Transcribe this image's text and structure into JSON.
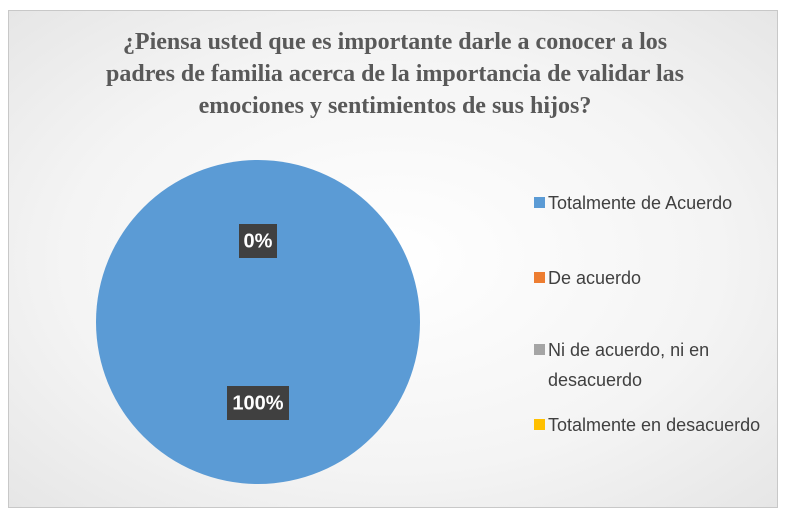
{
  "chart_data": {
    "type": "pie",
    "title": "¿Piensa usted que es importante darle a conocer a los padres de familia acerca de la importancia de validar las emociones y sentimientos de sus hijos?",
    "categories": [
      "Totalmente de Acuerdo",
      "De acuerdo",
      "Ni de acuerdo, ni en desacuerdo",
      "Totalmente en desacuerdo"
    ],
    "values": [
      100,
      0,
      0,
      0
    ],
    "value_labels": [
      "100%",
      "0%",
      null,
      null
    ],
    "colors": [
      "#5b9bd5",
      "#ed7d31",
      "#a5a5a5",
      "#ffc000"
    ],
    "legend": "right"
  }
}
